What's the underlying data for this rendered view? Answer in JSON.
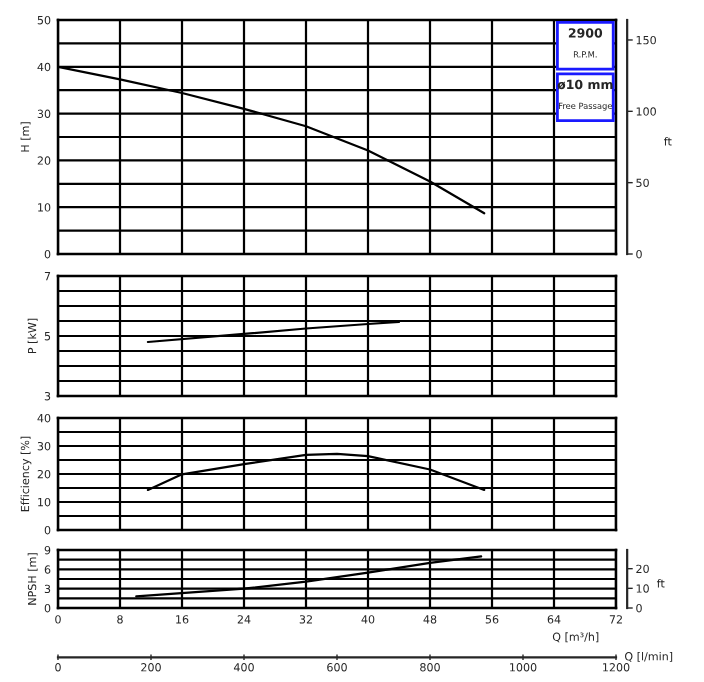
{
  "chart_data": [
    {
      "type": "line",
      "ylabel": "H [m]",
      "y2label": "ft",
      "xlim": [
        0,
        72
      ],
      "xticks": [
        0,
        8,
        16,
        24,
        32,
        40,
        48,
        56,
        64,
        72
      ],
      "ylim": [
        0,
        50
      ],
      "yticks": [
        0,
        {
          "value": 5,
          "label": null
        },
        10,
        {
          "value": 15,
          "label": null
        },
        20,
        {
          "value": 25,
          "label": null
        },
        30,
        {
          "value": 35,
          "label": null
        },
        40,
        {
          "value": 45,
          "label": null
        },
        50
      ],
      "y2lim": [
        0,
        164
      ],
      "y2ticks": [
        0,
        50,
        100,
        150
      ],
      "tick_labels": "y",
      "grid": true,
      "legend": false,
      "annotations": [
        "2900",
        "R.P.M.",
        "ø10 mm",
        "Free Passage"
      ],
      "series": [
        {
          "color": "#000000",
          "x": [
            0,
            8,
            16,
            24,
            32,
            40,
            48,
            55
          ],
          "values": [
            40,
            37.3,
            34.4,
            31,
            27.3,
            22.1,
            15.5,
            8.7
          ]
        }
      ]
    },
    {
      "type": "line",
      "ylabel": "P [kW]",
      "xlim": [
        0,
        72
      ],
      "xticks": [
        0,
        8,
        16,
        24,
        32,
        40,
        48,
        56,
        64,
        72
      ],
      "ylim": [
        3,
        7
      ],
      "yticks": [
        3,
        {
          "value": 3.5,
          "label": null
        },
        {
          "value": 4,
          "label": null
        },
        {
          "value": 4.5,
          "label": null
        },
        5,
        {
          "value": 5.5,
          "label": null
        },
        {
          "value": 6,
          "label": null
        },
        {
          "value": 6.5,
          "label": null
        },
        7
      ],
      "tick_labels": "y",
      "grid": true,
      "legend": false,
      "series": [
        {
          "color": "#000000",
          "x": [
            11.6,
            24,
            32,
            40,
            44
          ],
          "values": [
            4.8,
            5.07,
            5.25,
            5.4,
            5.47
          ]
        }
      ]
    },
    {
      "type": "line",
      "ylabel": "Efficiency [%]",
      "xlim": [
        0,
        72
      ],
      "xticks": [
        0,
        8,
        16,
        24,
        32,
        40,
        48,
        56,
        64,
        72
      ],
      "ylim": [
        0,
        40
      ],
      "yticks": [
        0,
        {
          "value": 5,
          "label": null
        },
        10,
        {
          "value": 15,
          "label": null
        },
        20,
        {
          "value": 25,
          "label": null
        },
        30,
        {
          "value": 35,
          "label": null
        },
        40
      ],
      "tick_labels": "y",
      "grid": true,
      "legend": false,
      "series": [
        {
          "color": "#000000",
          "x": [
            11.6,
            16,
            24,
            32,
            36,
            40,
            48,
            55
          ],
          "values": [
            14.3,
            19.9,
            23.5,
            26.8,
            27.2,
            26.4,
            21.6,
            14.3
          ]
        }
      ]
    },
    {
      "type": "line",
      "ylabel": "NPSH [m]",
      "y2label": "ft",
      "xlabel": "Q [m³/h]",
      "x2label": "Q [l/min]",
      "xlim": [
        0,
        72
      ],
      "xticks": [
        0,
        8,
        16,
        24,
        32,
        40,
        48,
        56,
        64,
        72
      ],
      "ylim": [
        0,
        9
      ],
      "yticks": [
        0,
        {
          "value": 1.5,
          "label": null
        },
        3,
        {
          "value": 4.5,
          "label": null
        },
        6,
        {
          "value": 7.5,
          "label": null
        },
        9
      ],
      "y2lim": [
        0,
        29.5
      ],
      "y2ticks": [
        0,
        10,
        20
      ],
      "x2lim": [
        0,
        1200
      ],
      "x2ticks": [
        0,
        200,
        400,
        600,
        800,
        1000,
        1200
      ],
      "grid": true,
      "legend": false,
      "series": [
        {
          "color": "#000000",
          "x": [
            10.1,
            24,
            32,
            40,
            48,
            54.6
          ],
          "values": [
            1.8,
            3.0,
            4.1,
            5.5,
            7.0,
            8.0
          ]
        }
      ]
    }
  ]
}
